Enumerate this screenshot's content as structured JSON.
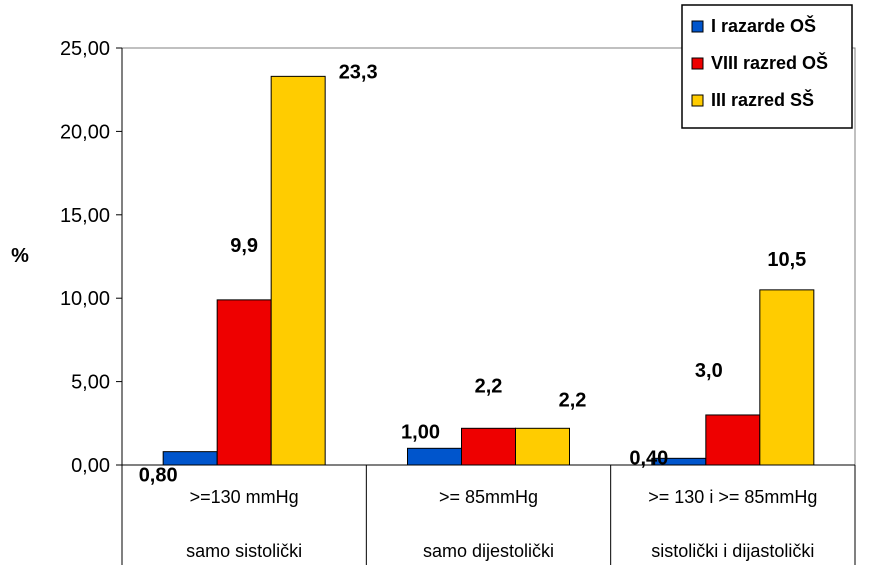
{
  "chart_data": {
    "type": "bar",
    "ylabel": "%",
    "ylim": [
      0,
      25
    ],
    "y_ticks": [
      "0,00",
      "5,00",
      "10,00",
      "15,00",
      "20,00",
      "25,00"
    ],
    "categories": [
      {
        "line1": ">=130 mmHg",
        "line2": "samo sistolički"
      },
      {
        "line1": ">= 85mmHg",
        "line2": "samo dijestolički"
      },
      {
        "line1": ">= 130 i >= 85mmHg",
        "line2": "sistolički i dijastolički"
      }
    ],
    "series": [
      {
        "name": "I razarde OŠ",
        "color": "#0055cc",
        "values": [
          0.8,
          1.0,
          0.4
        ],
        "labels": [
          "0,80",
          "1,00",
          "0,40"
        ]
      },
      {
        "name": "VIII razred OŠ",
        "color": "#ee0000",
        "values": [
          9.9,
          2.2,
          3.0
        ],
        "labels": [
          "9,9",
          "2,2",
          "3,0"
        ]
      },
      {
        "name": "III razred SŠ",
        "color": "#ffcc00",
        "values": [
          23.3,
          2.2,
          10.5
        ],
        "labels": [
          "23,3",
          "2,2",
          "10,5"
        ]
      }
    ],
    "legend_position": "top-right",
    "grid": false
  }
}
